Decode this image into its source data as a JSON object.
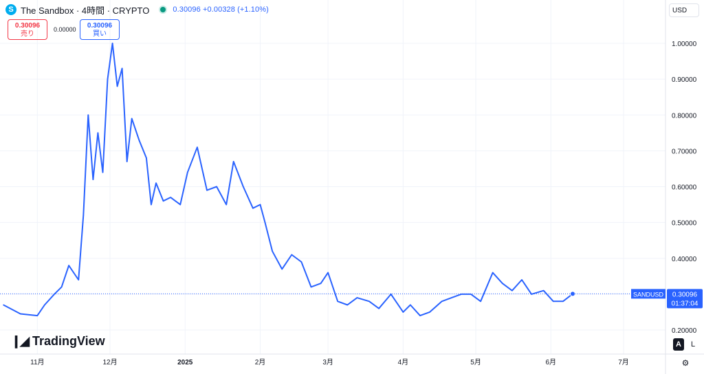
{
  "header": {
    "logo_letter": "S",
    "title": "The Sandbox · 4時間 · CRYPTO",
    "price_change": "0.30096 +0.00328 (+1.10%)"
  },
  "quotes": {
    "sell_value": "0.30096",
    "sell_label": "売り",
    "spread": "0.00000",
    "buy_value": "0.30096",
    "buy_label": "買い"
  },
  "currency": "USD",
  "brand": "TradingView",
  "scale_buttons": {
    "auto": "A",
    "log": "L"
  },
  "colors": {
    "line": "#2962ff",
    "grid": "#f0f3fa",
    "price_label_bg": "#2962ff"
  },
  "chart_data": {
    "type": "line",
    "symbol": "SANDUSD",
    "last_price": "0.30096",
    "countdown": "01:37:04",
    "ylim": [
      0.18,
      1.1
    ],
    "y_ticks": [
      "1.00000",
      "0.90000",
      "0.80000",
      "0.70000",
      "0.60000",
      "0.50000",
      "0.40000",
      "0.30000",
      "0.20000"
    ],
    "x_ticks": [
      "11月",
      "12月",
      "2025",
      "2月",
      "3月",
      "4月",
      "5月",
      "6月",
      "7月"
    ],
    "grid": true,
    "x": [
      "2024-10-18",
      "2024-10-25",
      "2024-11-01",
      "2024-11-04",
      "2024-11-08",
      "2024-11-11",
      "2024-11-14",
      "2024-11-18",
      "2024-11-20",
      "2024-11-22",
      "2024-11-24",
      "2024-11-26",
      "2024-11-28",
      "2024-11-30",
      "2024-12-02",
      "2024-12-04",
      "2024-12-06",
      "2024-12-08",
      "2024-12-10",
      "2024-12-13",
      "2024-12-16",
      "2024-12-18",
      "2024-12-20",
      "2024-12-23",
      "2024-12-26",
      "2024-12-30",
      "2025-01-02",
      "2025-01-06",
      "2025-01-10",
      "2025-01-14",
      "2025-01-18",
      "2025-01-21",
      "2025-01-25",
      "2025-01-29",
      "2025-02-01",
      "2025-02-03",
      "2025-02-06",
      "2025-02-10",
      "2025-02-14",
      "2025-02-18",
      "2025-02-22",
      "2025-02-26",
      "2025-03-01",
      "2025-03-05",
      "2025-03-09",
      "2025-03-13",
      "2025-03-18",
      "2025-03-22",
      "2025-03-27",
      "2025-04-01",
      "2025-04-04",
      "2025-04-08",
      "2025-04-12",
      "2025-04-17",
      "2025-04-21",
      "2025-04-25",
      "2025-04-29",
      "2025-05-03",
      "2025-05-08",
      "2025-05-12",
      "2025-05-16",
      "2025-05-20",
      "2025-05-24",
      "2025-05-29",
      "2025-06-02",
      "2025-06-06",
      "2025-06-10"
    ],
    "values": [
      0.27,
      0.245,
      0.24,
      0.27,
      0.3,
      0.32,
      0.38,
      0.34,
      0.52,
      0.8,
      0.62,
      0.75,
      0.64,
      0.9,
      1.0,
      0.88,
      0.93,
      0.67,
      0.79,
      0.73,
      0.68,
      0.55,
      0.61,
      0.56,
      0.57,
      0.55,
      0.64,
      0.71,
      0.59,
      0.6,
      0.55,
      0.67,
      0.6,
      0.54,
      0.55,
      0.5,
      0.42,
      0.37,
      0.41,
      0.39,
      0.32,
      0.33,
      0.36,
      0.28,
      0.27,
      0.29,
      0.28,
      0.26,
      0.3,
      0.25,
      0.27,
      0.24,
      0.25,
      0.28,
      0.29,
      0.3,
      0.3,
      0.28,
      0.36,
      0.33,
      0.31,
      0.34,
      0.3,
      0.31,
      0.28,
      0.28,
      0.30096
    ]
  }
}
